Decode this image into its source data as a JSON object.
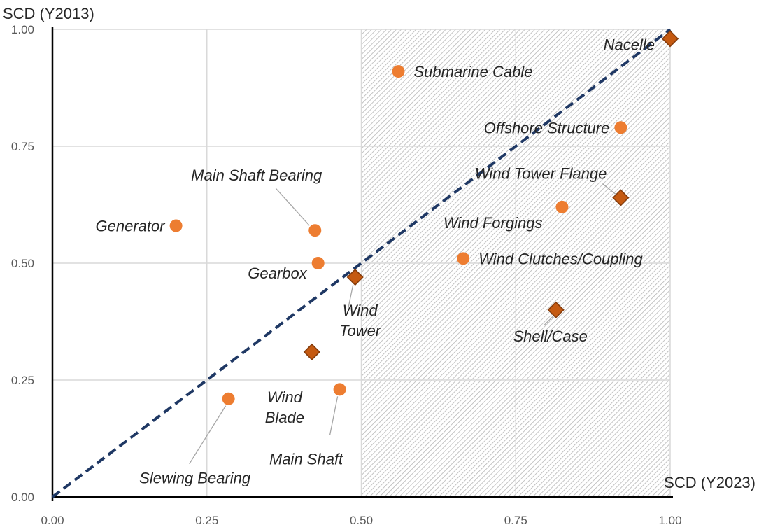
{
  "chart_data": {
    "type": "scatter",
    "xlabel": "SCD (Y2023)",
    "ylabel": "SCD (Y2013)",
    "xlim": [
      0,
      1
    ],
    "ylim": [
      0,
      1
    ],
    "x_ticks": [
      "0.00",
      "0.25",
      "0.50",
      "0.75",
      "1.00"
    ],
    "y_ticks": [
      "0.00",
      "0.25",
      "0.50",
      "0.75",
      "1.00"
    ],
    "grid": true,
    "hatched_region": {
      "x_from": 0.5,
      "x_to": 1.0,
      "y_from": 0.0,
      "y_to": 1.0
    },
    "reference_line": {
      "from": [
        0,
        0
      ],
      "to": [
        1,
        1
      ],
      "style": "dashed",
      "color": "#1f3864"
    },
    "colors": {
      "circle": "#ed7d31",
      "diamond": "#c55a11",
      "diamond_edge": "#843c0c"
    },
    "points": [
      {
        "label": "Nacelle",
        "x": 1.0,
        "y": 0.98,
        "marker": "diamond"
      },
      {
        "label": "Submarine Cable",
        "x": 0.56,
        "y": 0.91,
        "marker": "circle"
      },
      {
        "label": "Offshore Structure",
        "x": 0.92,
        "y": 0.79,
        "marker": "circle"
      },
      {
        "label": "Wind Tower Flange",
        "x": 0.92,
        "y": 0.64,
        "marker": "diamond"
      },
      {
        "label": "Main Shaft Bearing",
        "x": 0.425,
        "y": 0.57,
        "marker": "circle"
      },
      {
        "label": "Generator",
        "x": 0.2,
        "y": 0.58,
        "marker": "circle"
      },
      {
        "label": "Wind Forgings",
        "x": 0.825,
        "y": 0.62,
        "marker": "circle"
      },
      {
        "label": "Gearbox",
        "x": 0.43,
        "y": 0.5,
        "marker": "circle"
      },
      {
        "label": "Wind Clutches/Coupling",
        "x": 0.665,
        "y": 0.51,
        "marker": "circle"
      },
      {
        "label": "Wind Tower",
        "x": 0.49,
        "y": 0.47,
        "marker": "diamond"
      },
      {
        "label": "Shell/Case",
        "x": 0.815,
        "y": 0.4,
        "marker": "diamond"
      },
      {
        "label": "Wind Blade",
        "x": 0.42,
        "y": 0.31,
        "marker": "diamond"
      },
      {
        "label": "Main Shaft",
        "x": 0.465,
        "y": 0.23,
        "marker": "circle"
      },
      {
        "label": "Slewing Bearing",
        "x": 0.285,
        "y": 0.21,
        "marker": "circle"
      }
    ]
  }
}
